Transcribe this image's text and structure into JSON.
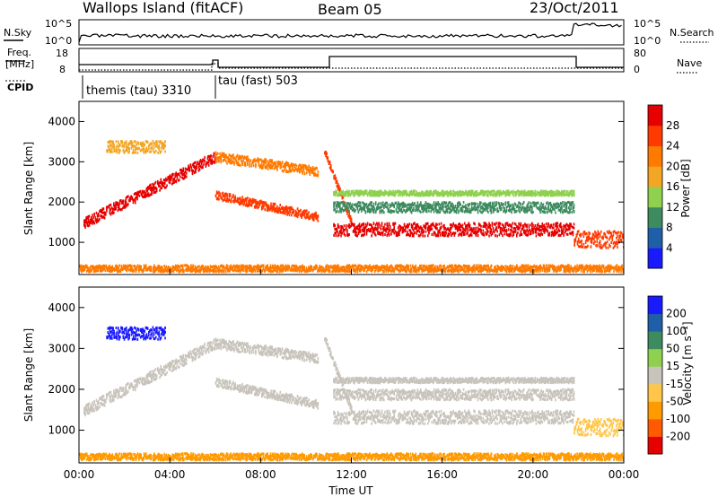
{
  "header": {
    "station": "Wallops Island (fitACF)",
    "beam": "Beam 05",
    "date": "23/Oct/2011"
  },
  "strip_labels": {
    "nsky": "N.Sky",
    "nsearch": "N.Search",
    "freq_line1": "Freq.",
    "freq_line2": "[MHz]",
    "nave": "Nave",
    "cpid": "CPID"
  },
  "strip_axes": {
    "nsky_left_top": "10^5",
    "nsky_left_bottom": "10^0",
    "nsky_right_top": "10^5",
    "nsky_right_bottom": "10^0",
    "freq_left_top": "18",
    "freq_left_bottom": "8",
    "nave_right_top": "80",
    "nave_right_bottom": "0"
  },
  "cpid_segments": [
    {
      "label": "themis (tau) 3310",
      "start_hour": 0,
      "end_hour": 6
    },
    {
      "label": "tau (fast) 503",
      "start_hour": 6,
      "end_hour": 24
    }
  ],
  "chart_data": [
    {
      "type": "heatmap",
      "panel": "power",
      "xlabel": "",
      "ylabel": "Slant Range [km]",
      "xlim": [
        0,
        24
      ],
      "ylim": [
        200,
        4500
      ],
      "yticks": [
        1000,
        2000,
        3000,
        4000
      ],
      "colorbar": {
        "label": "Power [dB]",
        "ticks": [
          "28",
          "24",
          "20",
          "16",
          "12",
          "8",
          "4"
        ],
        "colors": [
          "#1a1aff",
          "#1f5fa8",
          "#3d8b5f",
          "#8fd14f",
          "#f2a623",
          "#ff7a00",
          "#ff3a00",
          "#e60000"
        ]
      }
    },
    {
      "type": "heatmap",
      "panel": "velocity",
      "xlabel": "Time UT",
      "ylabel": "Slant Range [km]",
      "xlim": [
        0,
        24
      ],
      "ylim": [
        200,
        4500
      ],
      "yticks": [
        1000,
        2000,
        3000,
        4000
      ],
      "xticks": [
        "00:00",
        "04:00",
        "08:00",
        "12:00",
        "16:00",
        "20:00",
        "00:00"
      ],
      "colorbar": {
        "label": "Velocity [m s⁻¹]",
        "ticks": [
          "200",
          "100",
          "50",
          "15",
          "-15",
          "-50",
          "-100",
          "-200"
        ],
        "colors": [
          "#e60000",
          "#ff5a00",
          "#ff9a00",
          "#ffc64a",
          "#c8c4bc",
          "#8fd14f",
          "#3d8b5f",
          "#1f5fa8",
          "#1a1aff"
        ]
      }
    }
  ]
}
